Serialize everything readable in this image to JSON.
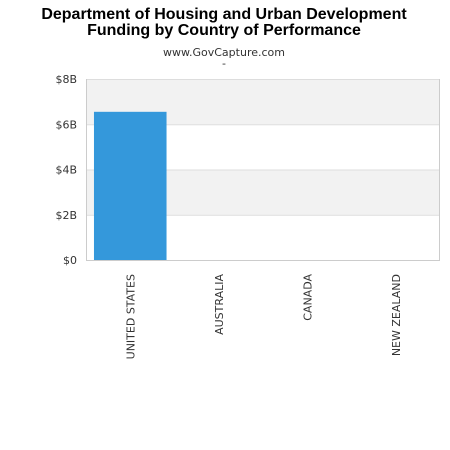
{
  "colors": {
    "bar": "#3498db",
    "band_alt": "#f2f2f2",
    "band": "#ffffff",
    "gridline": "#dddddd",
    "axis": "#cccccc"
  },
  "chart_data": {
    "type": "bar",
    "title_line1": "Department of Housing and Urban Development",
    "title_line2": "Funding by Country of Performance",
    "subtitle": "www.GovCapture.com",
    "subtitle2": "-",
    "xlabel": "",
    "ylabel": "",
    "categories": [
      "UNITED STATES",
      "AUSTRALIA",
      "CANADA",
      "NEW ZEALAND"
    ],
    "values": [
      6550000000,
      0,
      0,
      0
    ],
    "ylim": [
      0,
      8000000000
    ],
    "y_ticks": [
      {
        "value": 0,
        "label": "$0"
      },
      {
        "value": 2000000000,
        "label": "$2B"
      },
      {
        "value": 4000000000,
        "label": "$4B"
      },
      {
        "value": 6000000000,
        "label": "$6B"
      },
      {
        "value": 8000000000,
        "label": "$8B"
      }
    ],
    "grid": true,
    "legend": "none"
  }
}
